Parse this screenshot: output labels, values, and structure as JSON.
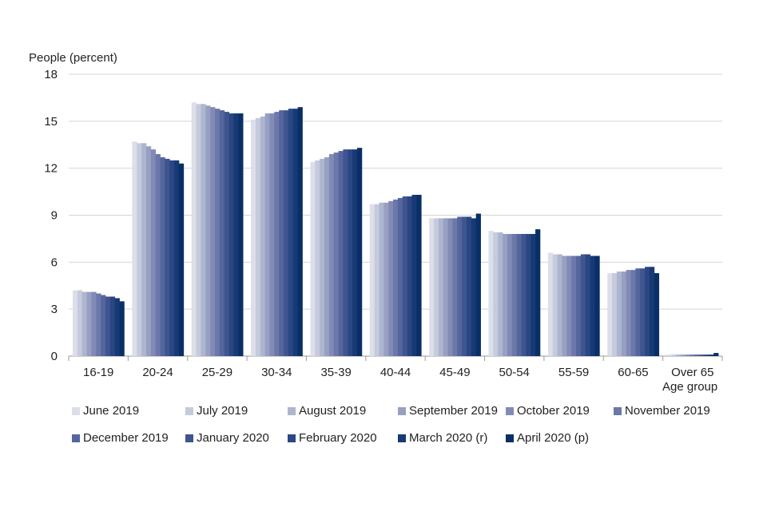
{
  "chart_data": {
    "type": "bar",
    "title": "",
    "ylabel": "People (percent)",
    "xlabel": "Age group",
    "ylim": [
      0,
      18
    ],
    "yticks": [
      0,
      3,
      6,
      9,
      12,
      15,
      18
    ],
    "grid": true,
    "legend_position": "bottom",
    "categories": [
      "16-19",
      "20-24",
      "25-29",
      "30-34",
      "35-39",
      "40-44",
      "45-49",
      "50-54",
      "55-59",
      "60-65",
      "Over 65"
    ],
    "series": [
      {
        "name": "June 2019",
        "color": "#dcdfe9",
        "values": [
          4.2,
          13.7,
          16.2,
          15.1,
          12.4,
          9.7,
          8.8,
          8.0,
          6.6,
          5.3,
          0.1
        ]
      },
      {
        "name": "July 2019",
        "color": "#c5cadc",
        "values": [
          4.2,
          13.6,
          16.1,
          15.2,
          12.5,
          9.7,
          8.8,
          7.9,
          6.5,
          5.3,
          0.1
        ]
      },
      {
        "name": "August 2019",
        "color": "#aeb5cf",
        "values": [
          4.1,
          13.6,
          16.1,
          15.3,
          12.6,
          9.8,
          8.8,
          7.9,
          6.5,
          5.4,
          0.1
        ]
      },
      {
        "name": "September 2019",
        "color": "#97a0c2",
        "values": [
          4.1,
          13.4,
          16.0,
          15.5,
          12.7,
          9.8,
          8.8,
          7.8,
          6.4,
          5.4,
          0.1
        ]
      },
      {
        "name": "October 2019",
        "color": "#818bb5",
        "values": [
          4.1,
          13.2,
          15.9,
          15.5,
          12.9,
          9.9,
          8.8,
          7.8,
          6.4,
          5.5,
          0.1
        ]
      },
      {
        "name": "November 2019",
        "color": "#6c78a9",
        "values": [
          4.0,
          12.9,
          15.8,
          15.6,
          13.0,
          10.0,
          8.8,
          7.8,
          6.4,
          5.5,
          0.1
        ]
      },
      {
        "name": "December 2019",
        "color": "#55669d",
        "values": [
          3.9,
          12.7,
          15.7,
          15.7,
          13.1,
          10.1,
          8.9,
          7.8,
          6.4,
          5.6,
          0.1
        ]
      },
      {
        "name": "January 2020",
        "color": "#3f5590",
        "values": [
          3.8,
          12.6,
          15.6,
          15.7,
          13.2,
          10.2,
          8.9,
          7.8,
          6.5,
          5.6,
          0.1
        ]
      },
      {
        "name": "February 2020",
        "color": "#2a4683",
        "values": [
          3.8,
          12.5,
          15.5,
          15.8,
          13.2,
          10.2,
          8.9,
          7.8,
          6.5,
          5.7,
          0.1
        ]
      },
      {
        "name": "March 2020 (r)",
        "color": "#173a75",
        "values": [
          3.7,
          12.5,
          15.5,
          15.8,
          13.2,
          10.3,
          8.8,
          7.8,
          6.4,
          5.7,
          0.1
        ]
      },
      {
        "name": "April 2020 (p)",
        "color": "#0a2f66",
        "values": [
          3.5,
          12.3,
          15.5,
          15.9,
          13.3,
          10.3,
          9.1,
          8.1,
          6.4,
          5.3,
          0.2
        ]
      }
    ]
  }
}
